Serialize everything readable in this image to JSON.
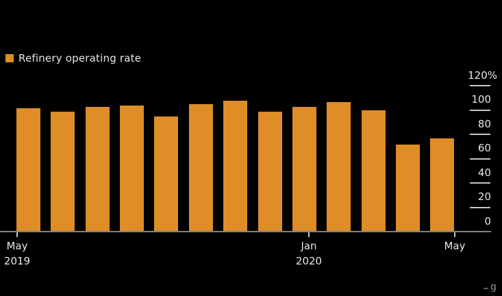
{
  "colors": {
    "background": "#000000",
    "bar": "#DE8D27",
    "text": "#E7E7E5",
    "axis_line": "#828282",
    "tick": "#C6C6C6",
    "watermark": "#8F8F8F"
  },
  "legend": {
    "label": "Refinery operating rate"
  },
  "watermark_fragment": "g",
  "chart_data": {
    "type": "bar",
    "title": "",
    "legend_entries": [
      "Refinery operating rate"
    ],
    "legend_position": "top-left",
    "categories": [
      "May 2019",
      "Jun 2019",
      "Jul 2019",
      "Aug 2019",
      "Sep 2019",
      "Oct 2019",
      "Nov 2019",
      "Dec 2019",
      "Jan 2020",
      "Feb 2020",
      "Mar 2020",
      "Apr 2020",
      "May 2020"
    ],
    "values": [
      102,
      99,
      103,
      104,
      95,
      105,
      108,
      99,
      103,
      107,
      100,
      72,
      77
    ],
    "unit": "%",
    "xlabel": "",
    "ylabel": "",
    "ylim": [
      0,
      120
    ],
    "grid": false,
    "y_axis": {
      "side": "right",
      "ticks": [
        {
          "value": 120,
          "label": "120%"
        },
        {
          "value": 100,
          "label": "100"
        },
        {
          "value": 80,
          "label": "80"
        },
        {
          "value": 60,
          "label": "60"
        },
        {
          "value": 40,
          "label": "40"
        },
        {
          "value": 20,
          "label": "20"
        },
        {
          "value": 0,
          "label": "0"
        }
      ]
    },
    "x_axis": {
      "ticks": [
        {
          "month_index": 0,
          "line1": "May",
          "line2": "2019"
        },
        {
          "month_index": 8,
          "line1": "Jan",
          "line2": "2020"
        },
        {
          "month_index": 12,
          "line1": "May",
          "line2": ""
        }
      ]
    }
  }
}
